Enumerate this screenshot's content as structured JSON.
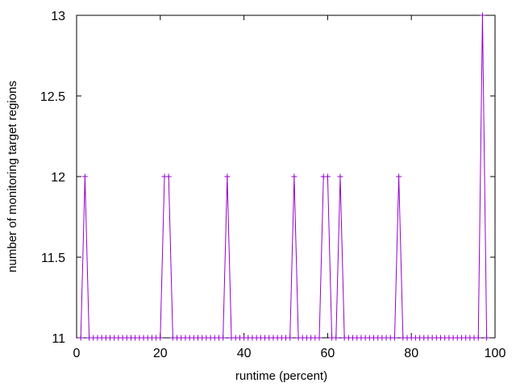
{
  "chart_data": {
    "type": "line",
    "title": "",
    "xlabel": "runtime (percent)",
    "ylabel": "number of monitoring target regions",
    "xlim": [
      0,
      100
    ],
    "ylim": [
      11,
      13
    ],
    "xticks": [
      0,
      20,
      40,
      60,
      80,
      100
    ],
    "yticks": [
      11,
      11.5,
      12,
      12.5,
      13
    ],
    "grid": false,
    "legend": "none",
    "series": [
      {
        "color": "#9400d3",
        "marker": "plus",
        "x": [
          1,
          2,
          3,
          4,
          5,
          6,
          7,
          8,
          9,
          10,
          11,
          12,
          13,
          14,
          15,
          16,
          17,
          18,
          19,
          20,
          21,
          22,
          23,
          24,
          25,
          26,
          27,
          28,
          29,
          30,
          31,
          32,
          33,
          34,
          35,
          36,
          37,
          38,
          39,
          40,
          41,
          42,
          43,
          44,
          45,
          46,
          47,
          48,
          49,
          50,
          51,
          52,
          53,
          54,
          55,
          56,
          57,
          58,
          59,
          60,
          61,
          62,
          63,
          64,
          65,
          66,
          67,
          68,
          69,
          70,
          71,
          72,
          73,
          74,
          75,
          76,
          77,
          78,
          79,
          80,
          81,
          82,
          83,
          84,
          85,
          86,
          87,
          88,
          89,
          90,
          91,
          92,
          93,
          94,
          95,
          96,
          97,
          98
        ],
        "y": [
          11,
          12,
          11,
          11,
          11,
          11,
          11,
          11,
          11,
          11,
          11,
          11,
          11,
          11,
          11,
          11,
          11,
          11,
          11,
          11,
          12,
          12,
          11,
          11,
          11,
          11,
          11,
          11,
          11,
          11,
          11,
          11,
          11,
          11,
          11,
          12,
          11,
          11,
          11,
          11,
          11,
          11,
          11,
          11,
          11,
          11,
          11,
          11,
          11,
          11,
          11,
          12,
          11,
          11,
          11,
          11,
          11,
          11,
          12,
          12,
          11,
          11,
          12,
          11,
          11,
          11,
          11,
          11,
          11,
          11,
          11,
          11,
          11,
          11,
          11,
          11,
          12,
          11,
          11,
          11,
          11,
          11,
          11,
          11,
          11,
          11,
          11,
          11,
          11,
          11,
          11,
          11,
          11,
          11,
          11,
          11,
          13,
          11
        ]
      }
    ]
  }
}
